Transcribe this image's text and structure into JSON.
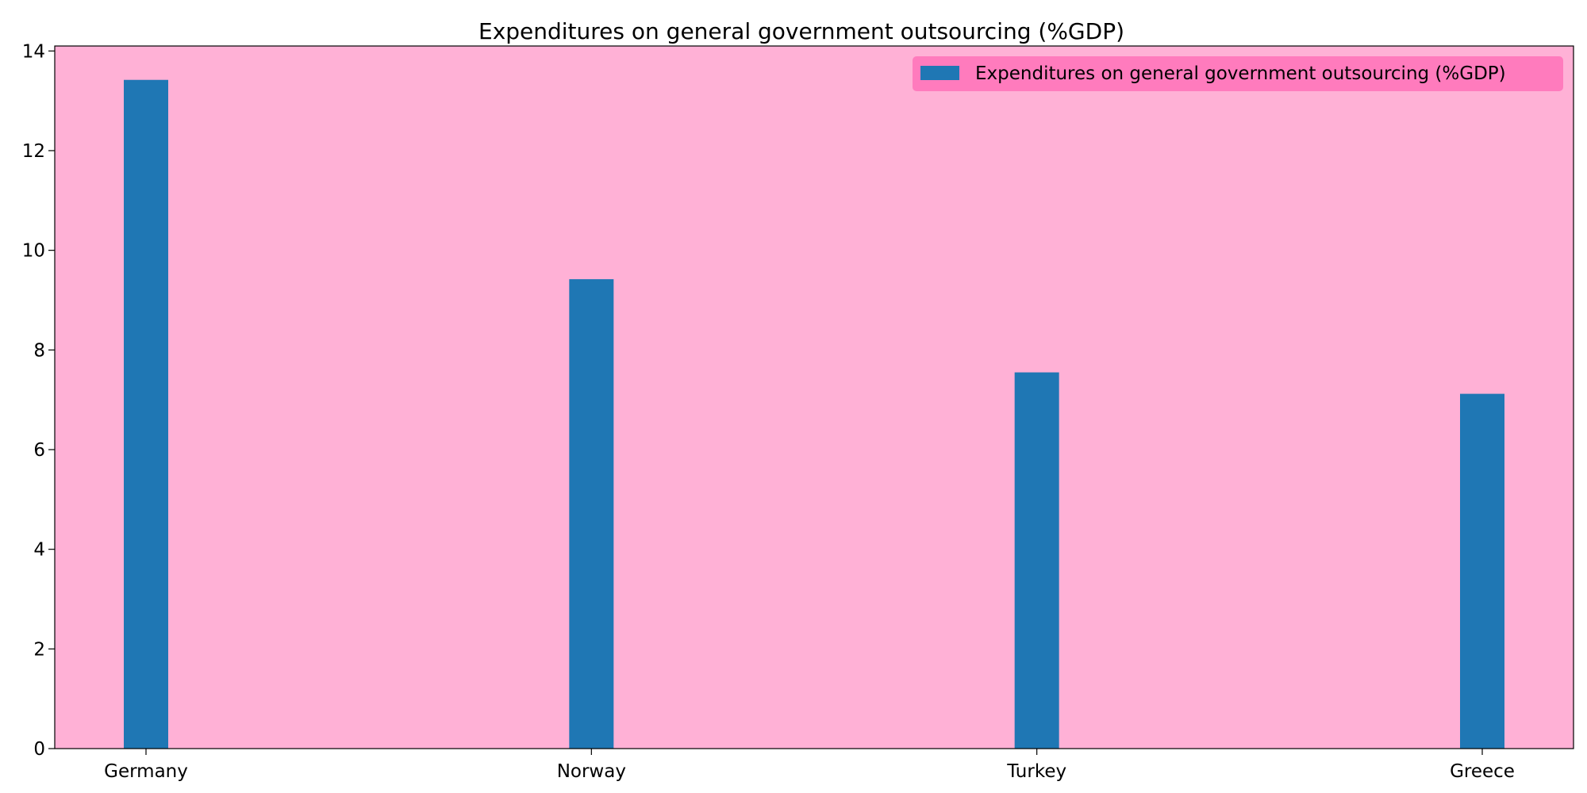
{
  "chart_data": {
    "type": "bar",
    "title": "Expenditures on general government outsourcing (%GDP)",
    "xlabel": "",
    "ylabel": "",
    "categories": [
      "Germany",
      "Norway",
      "Turkey",
      "Greece"
    ],
    "series": [
      {
        "name": "Expenditures on general government outsourcing (%GDP)",
        "values": [
          13.42,
          9.42,
          7.55,
          7.12
        ],
        "color": "#1f77b4"
      }
    ],
    "ylim": [
      0,
      14.1
    ],
    "yticks": [
      "0",
      "2",
      "4",
      "6",
      "8",
      "10",
      "12",
      "14"
    ],
    "grid": false,
    "legend_position": "top-right",
    "plot_background": "#ffb1d6",
    "legend_background": "#ff7bbd"
  }
}
